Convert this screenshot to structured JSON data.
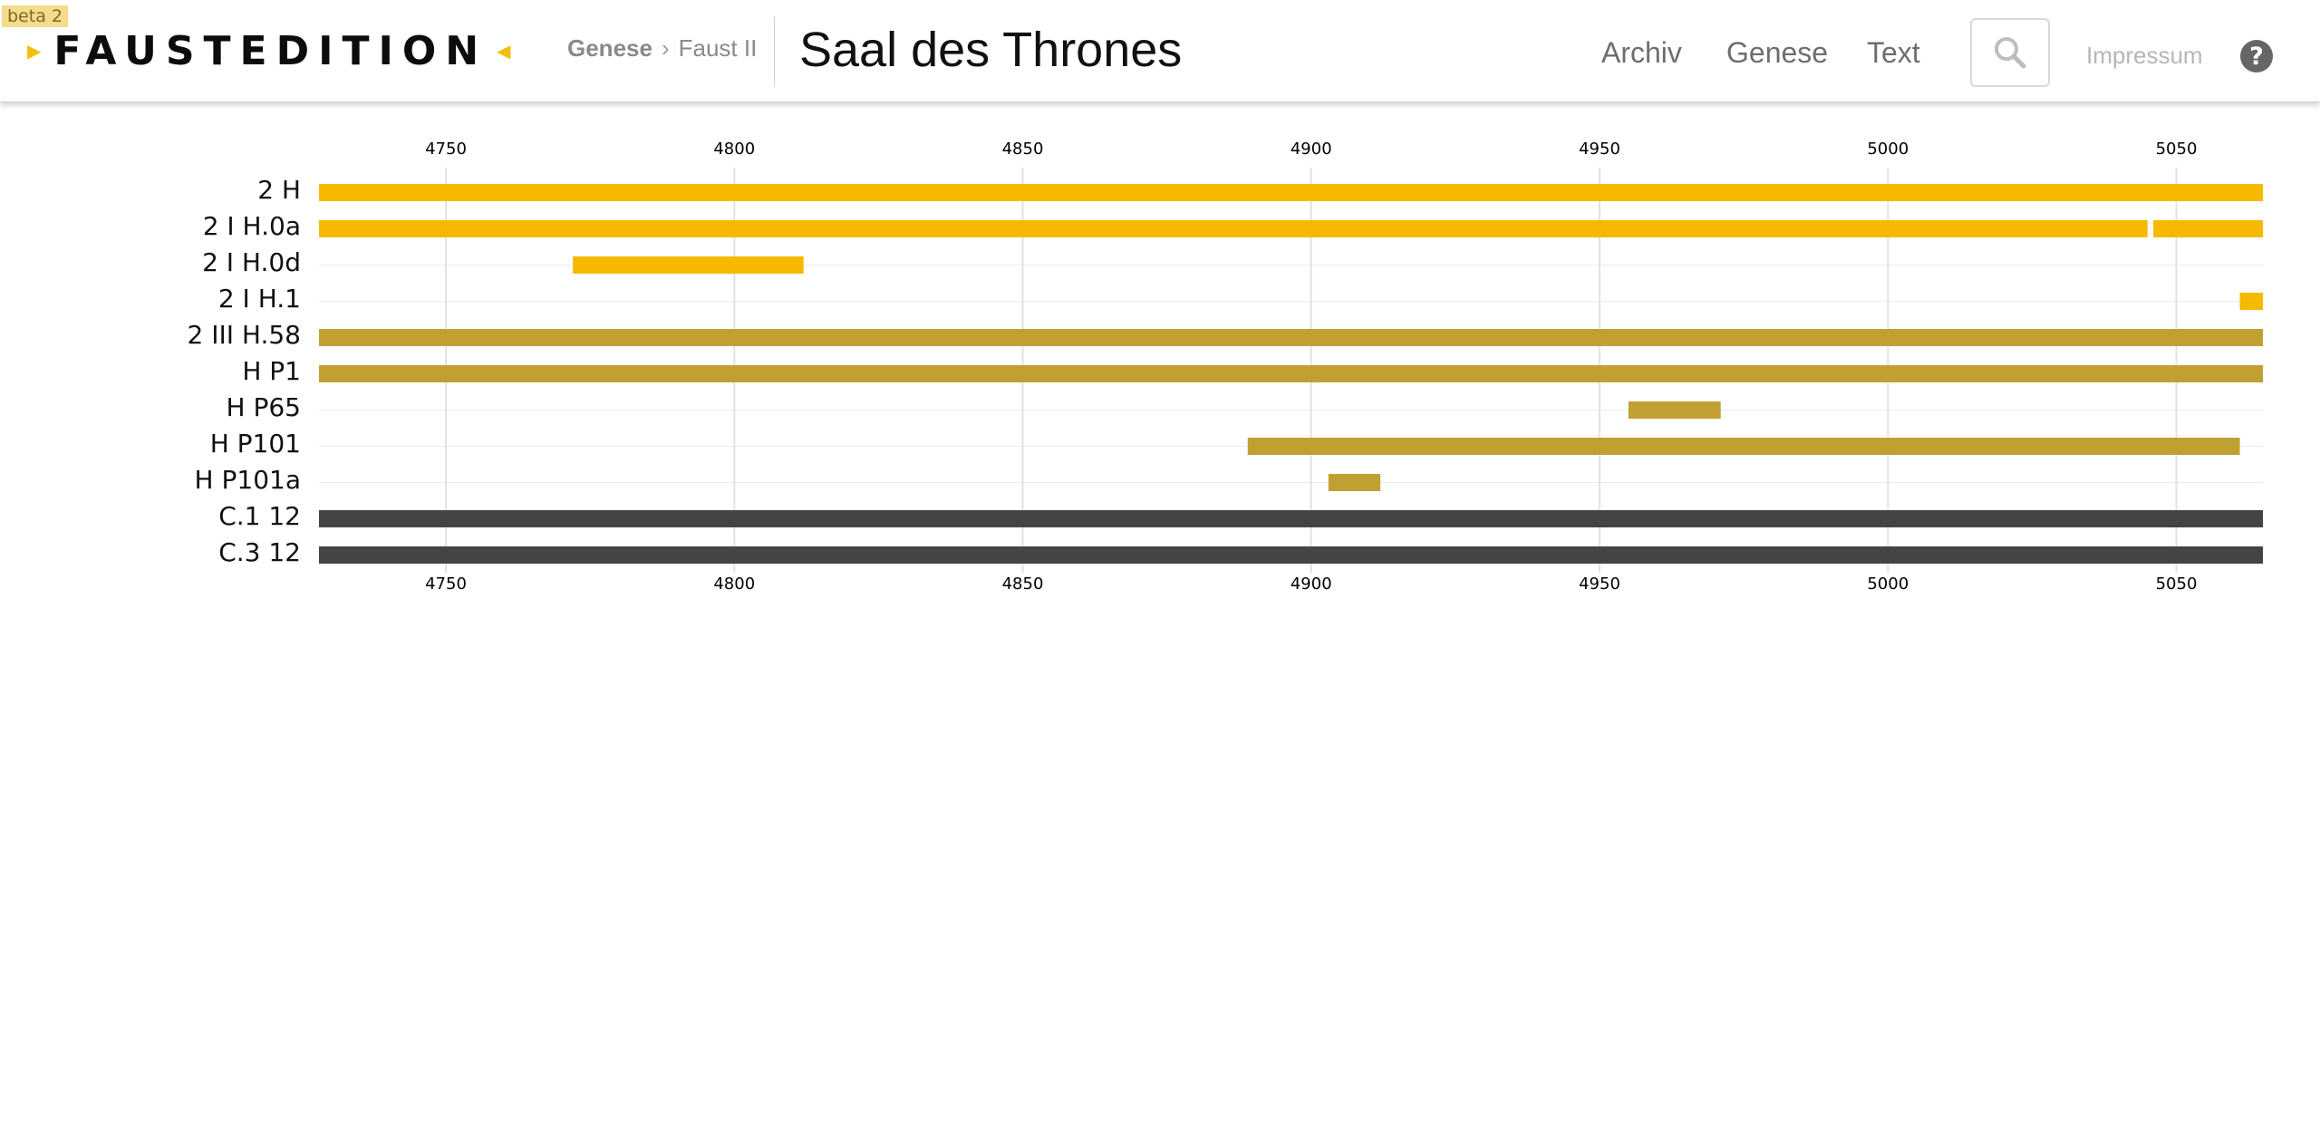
{
  "header": {
    "beta": "beta 2",
    "logo": "FAUSTEDITION",
    "breadcrumbs": [
      "Genese",
      "Faust II"
    ],
    "title": "Saal des Thrones",
    "nav": [
      {
        "label": "Archiv"
      },
      {
        "label": "Genese"
      },
      {
        "label": "Text"
      }
    ],
    "search_icon": "search-icon",
    "impressum": "Impressum",
    "help_icon": "?"
  },
  "colors": {
    "accent": "#f2bf0e",
    "bar_yellow": "#f7b900",
    "bar_olive": "#c1a032",
    "bar_dark": "#444444"
  },
  "chart_data": {
    "type": "bar",
    "orientation": "horizontal-range",
    "xlim": [
      4728,
      5065
    ],
    "x_ticks": [
      4750,
      4800,
      4850,
      4900,
      4950,
      5000,
      5050
    ],
    "grid": true,
    "axis_position": "top and bottom",
    "rows": [
      {
        "label": "2 H",
        "color_key": "bar_yellow",
        "segments": [
          [
            4728,
            5065
          ]
        ]
      },
      {
        "label": "2 I H.0a",
        "color_key": "bar_yellow",
        "segments": [
          [
            4728,
            5045
          ],
          [
            5046,
            5065
          ]
        ]
      },
      {
        "label": "2 I H.0d",
        "color_key": "bar_yellow",
        "segments": [
          [
            4772,
            4812
          ]
        ]
      },
      {
        "label": "2 I H.1",
        "color_key": "bar_yellow",
        "segments": [
          [
            5061,
            5065
          ]
        ]
      },
      {
        "label": "2 III H.58",
        "color_key": "bar_olive",
        "segments": [
          [
            4728,
            5065
          ]
        ]
      },
      {
        "label": "H P1",
        "color_key": "bar_olive",
        "segments": [
          [
            4728,
            5065
          ]
        ]
      },
      {
        "label": "H P65",
        "color_key": "bar_olive",
        "segments": [
          [
            4955,
            4971
          ]
        ]
      },
      {
        "label": "H P101",
        "color_key": "bar_olive",
        "segments": [
          [
            4889,
            5061
          ]
        ]
      },
      {
        "label": "H P101a",
        "color_key": "bar_olive",
        "segments": [
          [
            4903,
            4912
          ]
        ]
      },
      {
        "label": "C.1 12",
        "color_key": "bar_dark",
        "segments": [
          [
            4728,
            5065
          ]
        ]
      },
      {
        "label": "C.3 12",
        "color_key": "bar_dark",
        "segments": [
          [
            4728,
            5065
          ]
        ]
      }
    ]
  }
}
